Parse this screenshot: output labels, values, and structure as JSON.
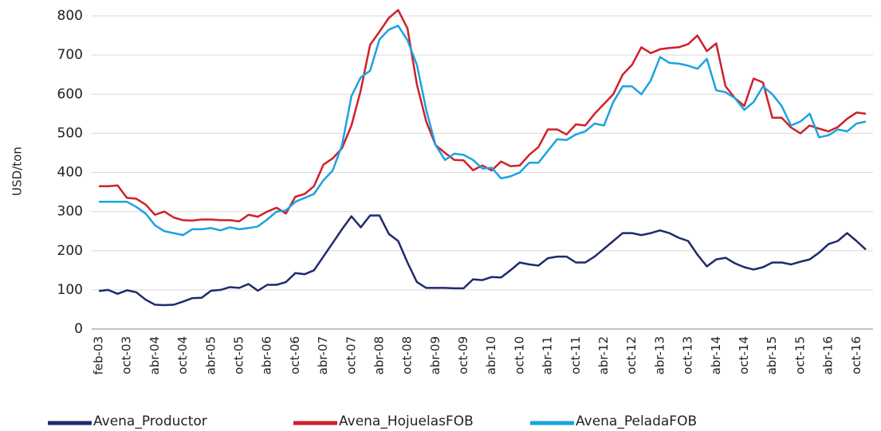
{
  "chart_data": {
    "type": "line",
    "y_label": "USD/ton",
    "categories": [
      "feb-03",
      null,
      null,
      "oct-03",
      null,
      null,
      "abr-04",
      null,
      null,
      "oct-04",
      null,
      null,
      "abr-05",
      null,
      null,
      "oct-05",
      null,
      null,
      "abr-06",
      null,
      null,
      "oct-06",
      null,
      null,
      "abr-07",
      null,
      null,
      "oct-07",
      null,
      null,
      "abr-08",
      null,
      null,
      "oct-08",
      null,
      null,
      "abr-09",
      null,
      null,
      "oct-09",
      null,
      null,
      "abr-10",
      null,
      null,
      "oct-10",
      null,
      null,
      "abr-11",
      null,
      null,
      "oct-11",
      null,
      null,
      "abr-12",
      null,
      null,
      "oct-12",
      null,
      null,
      "abr-13",
      null,
      null,
      "oct-13",
      null,
      null,
      "abr-14",
      null,
      null,
      "oct-14",
      null,
      null,
      "abr-15",
      null,
      null,
      "oct-15",
      null,
      null,
      "abr-16",
      null,
      null,
      "oct-16",
      null
    ],
    "series": [
      {
        "name": "Avena_Productor",
        "color": "#1f2a6e",
        "values": [
          97,
          100,
          90,
          99,
          94,
          75,
          62,
          61,
          62,
          70,
          79,
          80,
          98,
          100,
          107,
          105,
          115,
          98,
          113,
          113,
          120,
          143,
          140,
          150,
          185,
          220,
          255,
          288,
          260,
          290,
          290,
          243,
          225,
          170,
          120,
          105,
          105,
          105,
          104,
          104,
          127,
          125,
          133,
          132,
          150,
          170,
          165,
          162,
          181,
          185,
          185,
          170,
          170,
          185,
          205,
          225,
          245,
          245,
          240,
          245,
          252,
          245,
          233,
          225,
          190,
          160,
          178,
          182,
          168,
          158,
          152,
          158,
          170,
          170,
          165,
          172,
          178,
          195,
          217,
          225,
          245,
          225,
          203
        ]
      },
      {
        "name": "Avena_HojuelasFOB",
        "color": "#d0202a",
        "values": [
          365,
          365,
          367,
          335,
          333,
          318,
          292,
          300,
          285,
          278,
          277,
          280,
          280,
          278,
          278,
          275,
          292,
          287,
          300,
          310,
          295,
          338,
          345,
          365,
          420,
          436,
          462,
          520,
          610,
          726,
          760,
          795,
          815,
          768,
          625,
          530,
          470,
          450,
          432,
          431,
          406,
          418,
          405,
          428,
          416,
          418,
          445,
          465,
          510,
          510,
          497,
          523,
          520,
          550,
          575,
          600,
          650,
          675,
          720,
          705,
          715,
          718,
          720,
          728,
          750,
          710,
          730,
          620,
          590,
          570,
          640,
          630,
          540,
          540,
          515,
          500,
          520,
          512,
          505,
          516,
          537,
          553,
          550
        ]
      },
      {
        "name": "Avena_PeladaFOB",
        "color": "#1aa3e0",
        "values": [
          325,
          325,
          325,
          325,
          312,
          295,
          265,
          250,
          245,
          240,
          255,
          255,
          258,
          252,
          260,
          255,
          258,
          262,
          280,
          300,
          303,
          325,
          335,
          345,
          380,
          405,
          470,
          595,
          643,
          660,
          740,
          765,
          775,
          738,
          675,
          560,
          470,
          432,
          448,
          445,
          432,
          410,
          412,
          385,
          390,
          400,
          425,
          425,
          455,
          485,
          483,
          497,
          505,
          525,
          520,
          580,
          620,
          620,
          600,
          635,
          695,
          680,
          678,
          673,
          665,
          690,
          610,
          605,
          590,
          560,
          580,
          620,
          600,
          570,
          520,
          530,
          550,
          490,
          495,
          510,
          505,
          525,
          530
        ]
      }
    ],
    "ylim": [
      0,
      800
    ],
    "yticks": [
      0,
      100,
      200,
      300,
      400,
      500,
      600,
      700,
      800
    ],
    "grid": true,
    "legend": "bottom"
  }
}
